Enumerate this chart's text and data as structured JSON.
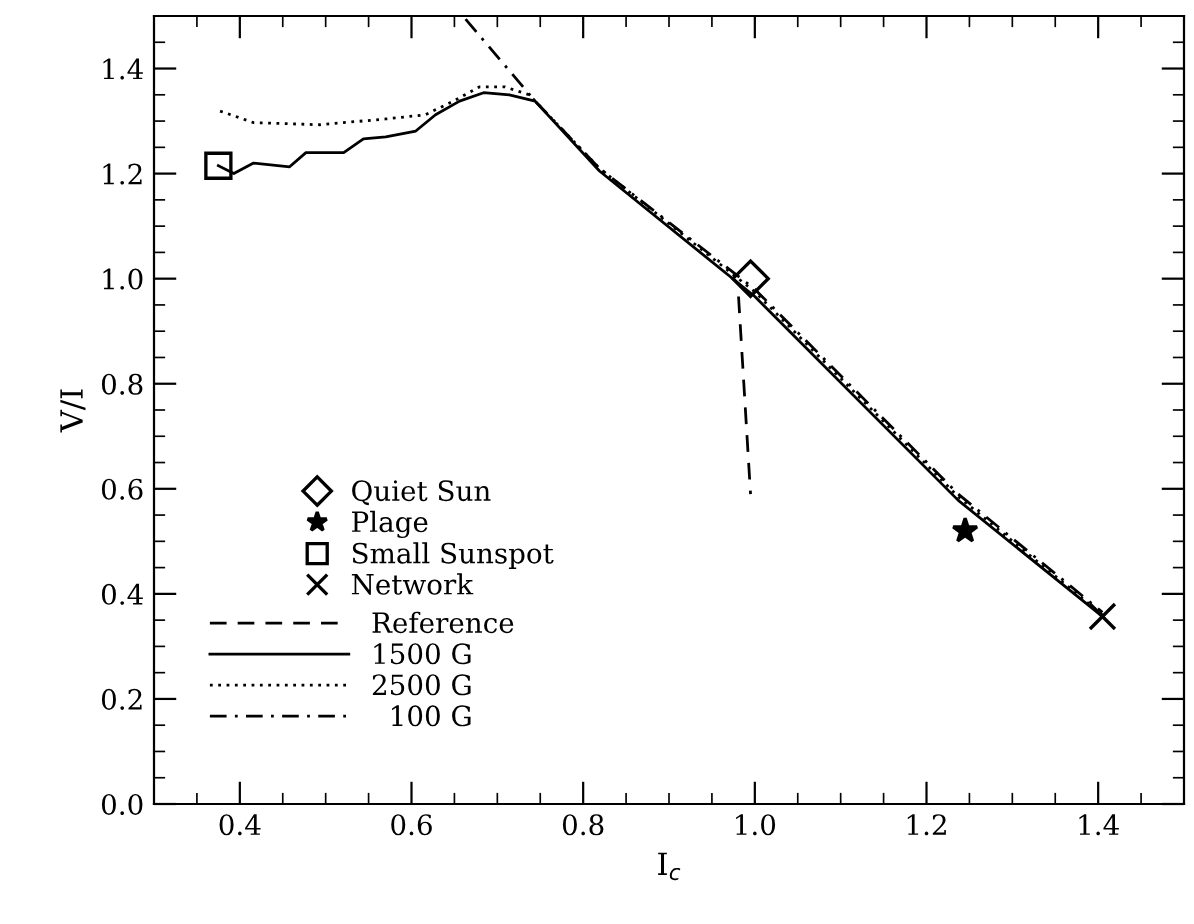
{
  "chart_data": {
    "type": "line",
    "xlabel": "I$_{c}$",
    "ylabel": "V/I",
    "xlim": [
      0.3,
      1.5
    ],
    "ylim": [
      0.0,
      1.5
    ],
    "xticks": [
      {
        "value": 0.4,
        "label": "0.4"
      },
      {
        "value": 0.6,
        "label": "0.6"
      },
      {
        "value": 0.8,
        "label": "0.8"
      },
      {
        "value": 1.0,
        "label": "1.0"
      },
      {
        "value": 1.2,
        "label": "1.2"
      },
      {
        "value": 1.4,
        "label": "1.4"
      }
    ],
    "yticks": [
      {
        "value": 0.0,
        "label": "0.0"
      },
      {
        "value": 0.2,
        "label": "0.2"
      },
      {
        "value": 0.4,
        "label": "0.4"
      },
      {
        "value": 0.6,
        "label": "0.6"
      },
      {
        "value": 0.8,
        "label": "0.8"
      },
      {
        "value": 1.0,
        "label": "1.0"
      },
      {
        "value": 1.2,
        "label": "1.2"
      },
      {
        "value": 1.4,
        "label": "1.4"
      }
    ],
    "grid": false,
    "legend": "bottom left",
    "series": [
      {
        "name": "Quiet Sun",
        "type": "scatter",
        "marker": "diamond",
        "color": "#000000",
        "x": [
          0.995
        ],
        "values": [
          1.0
        ]
      },
      {
        "name": "Plage",
        "type": "scatter",
        "marker": "star",
        "color": "#000000",
        "x": [
          1.245
        ],
        "values": [
          0.52
        ]
      },
      {
        "name": "Small Sunspot",
        "type": "scatter",
        "marker": "square",
        "color": "#000000",
        "x": [
          0.375
        ],
        "values": [
          1.215
        ]
      },
      {
        "name": "Network",
        "type": "scatter",
        "marker": "cross",
        "color": "#000000",
        "x": [
          1.405
        ],
        "values": [
          0.357
        ]
      },
      {
        "name": "Reference",
        "line_style": "dashed",
        "marker": "none",
        "color": "#000000",
        "x": [
          0.981,
          0.995
        ],
        "values": [
          0.966,
          0.59
        ]
      },
      {
        "name": "1500 G",
        "line_style": "solid",
        "marker": "none",
        "color": "#000000",
        "x": [
          0.375,
          0.393,
          0.416,
          0.458,
          0.477,
          0.521,
          0.544,
          0.57,
          0.605,
          0.628,
          0.656,
          0.684,
          0.714,
          0.744,
          0.819,
          1.0,
          1.237,
          1.405
        ],
        "values": [
          1.215,
          1.2,
          1.22,
          1.213,
          1.24,
          1.24,
          1.266,
          1.27,
          1.281,
          1.312,
          1.338,
          1.354,
          1.35,
          1.338,
          1.205,
          0.966,
          0.578,
          0.357
        ]
      },
      {
        "name": "2500 G",
        "line_style": "dotted",
        "marker": "none",
        "color": "#000000",
        "x": [
          0.377,
          0.416,
          0.493,
          0.57,
          0.616,
          0.649,
          0.679,
          0.709,
          0.737,
          0.819,
          1.0,
          1.237,
          1.405
        ],
        "values": [
          1.319,
          1.297,
          1.293,
          1.304,
          1.312,
          1.338,
          1.365,
          1.365,
          1.35,
          1.21,
          0.975,
          0.585,
          0.36
        ]
      },
      {
        "name": "  100 G",
        "line_style": "dashdot",
        "marker": "none",
        "color": "#000000",
        "x": [
          0.663,
          0.744,
          0.819,
          1.0,
          1.237,
          1.405
        ],
        "values": [
          1.494,
          1.338,
          1.21,
          0.98,
          0.59,
          0.365
        ]
      }
    ]
  }
}
